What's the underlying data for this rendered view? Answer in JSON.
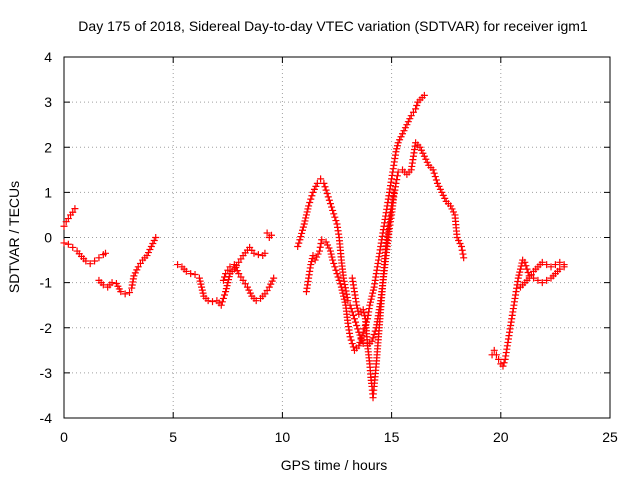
{
  "chart_data": {
    "type": "scatter",
    "title": "Day 175 of 2018, Sidereal Day-to-day VTEC variation (SDTVAR) for receiver igm1",
    "xlabel": "GPS time / hours",
    "ylabel": "SDTVAR / TECUs",
    "xlim": [
      0,
      25
    ],
    "ylim": [
      -4,
      4
    ],
    "x_ticks": [
      "0",
      "5",
      "10",
      "15",
      "20",
      "25"
    ],
    "y_ticks": [
      "4",
      "3",
      "2",
      "1",
      "0",
      "-1",
      "-2",
      "-3",
      "-4"
    ],
    "grid": true,
    "marker": "plus",
    "color": "#ff0000",
    "series": [
      {
        "name": "s1",
        "points": [
          [
            0.0,
            0.25
          ],
          [
            0.1,
            0.35
          ],
          [
            0.2,
            0.42
          ],
          [
            0.3,
            0.5
          ],
          [
            0.4,
            0.56
          ],
          [
            0.5,
            0.64
          ]
        ]
      },
      {
        "name": "s2",
        "points": [
          [
            0.0,
            -0.12
          ],
          [
            0.2,
            -0.15
          ],
          [
            0.4,
            -0.22
          ],
          [
            0.6,
            -0.3
          ],
          [
            0.8,
            -0.42
          ],
          [
            1.0,
            -0.52
          ],
          [
            1.2,
            -0.58
          ],
          [
            1.4,
            -0.52
          ],
          [
            1.6,
            -0.45
          ],
          [
            1.8,
            -0.38
          ],
          [
            1.9,
            -0.35
          ]
        ]
      },
      {
        "name": "s3",
        "points": [
          [
            1.6,
            -0.95
          ],
          [
            1.8,
            -1.05
          ],
          [
            2.0,
            -1.1
          ],
          [
            2.2,
            -1.0
          ],
          [
            2.4,
            -1.02
          ],
          [
            2.6,
            -1.2
          ],
          [
            2.8,
            -1.25
          ],
          [
            3.0,
            -1.22
          ],
          [
            3.1,
            -1.12
          ],
          [
            3.2,
            -0.85
          ],
          [
            3.4,
            -0.65
          ],
          [
            3.6,
            -0.5
          ],
          [
            3.8,
            -0.4
          ],
          [
            4.0,
            -0.2
          ],
          [
            4.2,
            0.0
          ]
        ]
      },
      {
        "name": "s4",
        "points": [
          [
            5.2,
            -0.6
          ],
          [
            5.4,
            -0.65
          ],
          [
            5.6,
            -0.75
          ],
          [
            5.8,
            -0.8
          ],
          [
            6.0,
            -0.82
          ],
          [
            6.2,
            -0.9
          ],
          [
            6.3,
            -1.1
          ],
          [
            6.4,
            -1.3
          ],
          [
            6.6,
            -1.4
          ],
          [
            6.8,
            -1.42
          ],
          [
            7.0,
            -1.4
          ],
          [
            7.2,
            -1.5
          ],
          [
            7.4,
            -1.2
          ],
          [
            7.6,
            -0.8
          ],
          [
            7.8,
            -0.7
          ],
          [
            8.0,
            -0.55
          ],
          [
            8.2,
            -0.4
          ],
          [
            8.4,
            -0.28
          ],
          [
            8.5,
            -0.22
          ],
          [
            8.7,
            -0.35
          ],
          [
            8.9,
            -0.38
          ],
          [
            9.1,
            -0.4
          ],
          [
            9.2,
            -0.35
          ]
        ]
      },
      {
        "name": "s5",
        "points": [
          [
            7.3,
            -0.95
          ],
          [
            7.4,
            -0.8
          ],
          [
            7.6,
            -0.65
          ],
          [
            7.8,
            -0.6
          ],
          [
            8.0,
            -0.8
          ],
          [
            8.2,
            -0.95
          ],
          [
            8.4,
            -1.1
          ],
          [
            8.6,
            -1.3
          ],
          [
            8.8,
            -1.4
          ],
          [
            9.0,
            -1.35
          ],
          [
            9.2,
            -1.25
          ],
          [
            9.4,
            -1.1
          ],
          [
            9.6,
            -0.9
          ]
        ]
      },
      {
        "name": "s6",
        "points": [
          [
            9.3,
            0.1
          ],
          [
            9.4,
            0.0
          ],
          [
            9.5,
            0.05
          ]
        ]
      },
      {
        "name": "s7",
        "points": [
          [
            10.7,
            -0.2
          ],
          [
            10.8,
            -0.05
          ],
          [
            11.0,
            0.3
          ],
          [
            11.2,
            0.7
          ],
          [
            11.4,
            1.0
          ],
          [
            11.6,
            1.2
          ],
          [
            11.75,
            1.3
          ],
          [
            11.9,
            1.2
          ],
          [
            12.1,
            0.9
          ],
          [
            12.3,
            0.6
          ],
          [
            12.5,
            0.3
          ],
          [
            12.6,
            0.0
          ],
          [
            12.7,
            -0.5
          ],
          [
            12.8,
            -0.9
          ],
          [
            13.0,
            -1.4
          ],
          [
            13.1,
            -1.5
          ],
          [
            13.3,
            -1.8
          ],
          [
            13.5,
            -2.1
          ],
          [
            13.7,
            -2.35
          ],
          [
            13.9,
            -2.4
          ],
          [
            14.1,
            -2.3
          ],
          [
            14.3,
            -2.0
          ],
          [
            14.5,
            -1.4
          ],
          [
            14.6,
            -1.0
          ],
          [
            14.7,
            -0.6
          ],
          [
            14.8,
            -0.2
          ],
          [
            14.9,
            0.2
          ],
          [
            15.0,
            0.5
          ],
          [
            15.1,
            0.9
          ],
          [
            15.2,
            1.2
          ],
          [
            15.3,
            1.45
          ],
          [
            15.5,
            1.5
          ],
          [
            15.7,
            1.4
          ],
          [
            15.9,
            1.5
          ],
          [
            16.0,
            1.8
          ],
          [
            16.1,
            2.1
          ],
          [
            16.3,
            2.0
          ],
          [
            16.5,
            1.8
          ],
          [
            16.7,
            1.6
          ],
          [
            16.9,
            1.5
          ],
          [
            17.1,
            1.2
          ],
          [
            17.3,
            1.0
          ],
          [
            17.5,
            0.8
          ],
          [
            17.7,
            0.7
          ],
          [
            17.9,
            0.5
          ],
          [
            18.0,
            0.0
          ],
          [
            18.2,
            -0.2
          ],
          [
            18.3,
            -0.45
          ]
        ]
      },
      {
        "name": "s8",
        "points": [
          [
            11.1,
            -1.2
          ],
          [
            11.2,
            -0.9
          ],
          [
            11.3,
            -0.6
          ],
          [
            11.4,
            -0.4
          ],
          [
            11.5,
            -0.5
          ],
          [
            11.7,
            -0.3
          ],
          [
            11.8,
            -0.05
          ],
          [
            12.0,
            -0.1
          ],
          [
            12.2,
            -0.3
          ],
          [
            12.3,
            -0.5
          ],
          [
            12.5,
            -0.8
          ],
          [
            12.7,
            -1.1
          ],
          [
            12.9,
            -1.5
          ],
          [
            13.0,
            -1.9
          ],
          [
            13.1,
            -2.2
          ],
          [
            13.3,
            -2.5
          ],
          [
            13.5,
            -2.4
          ],
          [
            13.7,
            -2.1
          ],
          [
            13.9,
            -1.8
          ],
          [
            14.0,
            -1.5
          ],
          [
            14.1,
            -1.3
          ],
          [
            14.2,
            -1.1
          ],
          [
            14.3,
            -0.8
          ],
          [
            14.4,
            -0.5
          ],
          [
            14.5,
            -0.2
          ],
          [
            14.6,
            0.1
          ],
          [
            14.7,
            0.4
          ],
          [
            14.8,
            0.7
          ],
          [
            14.9,
            1.0
          ],
          [
            15.0,
            1.3
          ],
          [
            15.1,
            1.6
          ],
          [
            15.2,
            1.9
          ],
          [
            15.3,
            2.1
          ],
          [
            15.5,
            2.3
          ],
          [
            15.7,
            2.5
          ],
          [
            15.9,
            2.7
          ],
          [
            16.1,
            2.85
          ],
          [
            16.2,
            3.0
          ],
          [
            16.3,
            3.05
          ],
          [
            16.4,
            3.1
          ],
          [
            16.5,
            3.15
          ]
        ]
      },
      {
        "name": "s9",
        "points": [
          [
            13.2,
            -0.9
          ],
          [
            13.3,
            -1.2
          ],
          [
            13.4,
            -1.5
          ],
          [
            13.5,
            -1.7
          ],
          [
            13.6,
            -1.65
          ],
          [
            13.7,
            -1.6
          ],
          [
            13.8,
            -1.8
          ],
          [
            13.9,
            -2.4
          ],
          [
            14.0,
            -2.8
          ],
          [
            14.05,
            -3.1
          ],
          [
            14.1,
            -3.3
          ],
          [
            14.15,
            -3.55
          ],
          [
            14.2,
            -3.3
          ],
          [
            14.3,
            -2.8
          ],
          [
            14.4,
            -2.2
          ],
          [
            14.5,
            -1.6
          ],
          [
            14.6,
            -1.0
          ],
          [
            14.7,
            -0.4
          ],
          [
            14.8,
            0.1
          ],
          [
            14.9,
            0.4
          ],
          [
            15.0,
            0.7
          ],
          [
            15.1,
            1.0
          ]
        ]
      },
      {
        "name": "s10",
        "points": [
          [
            19.6,
            -2.6
          ],
          [
            19.7,
            -2.5
          ],
          [
            19.8,
            -2.6
          ],
          [
            19.9,
            -2.7
          ],
          [
            20.0,
            -2.8
          ],
          [
            20.1,
            -2.85
          ],
          [
            20.2,
            -2.7
          ],
          [
            20.3,
            -2.4
          ],
          [
            20.4,
            -2.1
          ],
          [
            20.5,
            -1.8
          ],
          [
            20.6,
            -1.5
          ],
          [
            20.7,
            -1.2
          ],
          [
            20.8,
            -0.9
          ],
          [
            20.9,
            -0.7
          ],
          [
            21.0,
            -0.5
          ],
          [
            21.1,
            -0.55
          ],
          [
            21.3,
            -0.85
          ],
          [
            21.5,
            -0.9
          ],
          [
            21.7,
            -0.95
          ],
          [
            21.9,
            -1.0
          ],
          [
            22.1,
            -0.95
          ],
          [
            22.3,
            -0.9
          ],
          [
            22.5,
            -0.8
          ],
          [
            22.7,
            -0.7
          ],
          [
            22.9,
            -0.65
          ]
        ]
      },
      {
        "name": "s11",
        "points": [
          [
            20.9,
            -1.1
          ],
          [
            21.1,
            -1.0
          ],
          [
            21.3,
            -0.9
          ],
          [
            21.5,
            -0.75
          ],
          [
            21.7,
            -0.65
          ],
          [
            21.9,
            -0.55
          ],
          [
            22.1,
            -0.6
          ],
          [
            22.3,
            -0.65
          ],
          [
            22.5,
            -0.6
          ],
          [
            22.7,
            -0.55
          ],
          [
            22.9,
            -0.6
          ]
        ]
      }
    ]
  }
}
